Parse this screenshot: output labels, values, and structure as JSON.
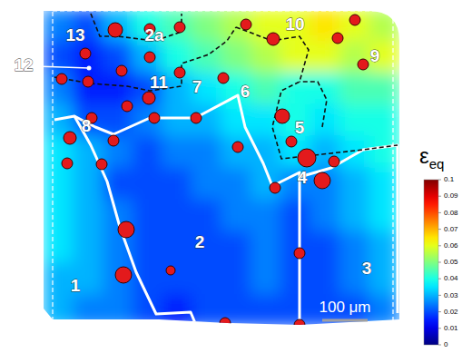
{
  "chart_data": {
    "type": "heatmap",
    "xlim": [
      0,
      784
    ],
    "ylim": [
      700,
      0
    ],
    "tick_labels": false,
    "cells": [
      [
        0.025,
        0.02,
        0.03,
        0.04,
        0.045,
        0.05,
        0.055,
        0.06,
        0.06,
        0.065,
        0.06,
        0.055
      ],
      [
        0.02,
        0.015,
        0.02,
        0.03,
        0.04,
        0.045,
        0.05,
        0.055,
        0.06,
        0.06,
        0.055,
        0.06
      ],
      [
        0.025,
        0.015,
        0.015,
        0.02,
        0.03,
        0.035,
        0.04,
        0.045,
        0.04,
        0.04,
        0.045,
        0.045
      ],
      [
        0.03,
        0.02,
        0.02,
        0.025,
        0.03,
        0.03,
        0.035,
        0.035,
        0.04,
        0.035,
        0.04,
        0.04
      ],
      [
        0.035,
        0.03,
        0.025,
        0.02,
        0.025,
        0.025,
        0.03,
        0.03,
        0.035,
        0.03,
        0.035,
        0.04
      ],
      [
        0.035,
        0.03,
        0.02,
        0.02,
        0.02,
        0.025,
        0.025,
        0.03,
        0.025,
        0.025,
        0.03,
        0.035
      ],
      [
        0.035,
        0.03,
        0.025,
        0.02,
        0.02,
        0.02,
        0.025,
        0.025,
        0.02,
        0.025,
        0.03,
        0.035
      ],
      [
        0.035,
        0.03,
        0.025,
        0.02,
        0.02,
        0.02,
        0.02,
        0.025,
        0.02,
        0.02,
        0.025,
        0.03
      ],
      [
        0.03,
        0.03,
        0.025,
        0.02,
        0.02,
        0.02,
        0.02,
        0.025,
        0.02,
        0.02,
        0.025,
        0.03
      ],
      [
        0.03,
        0.025,
        0.025,
        0.02,
        0.015,
        0.02,
        0.02,
        0.02,
        0.02,
        0.02,
        0.02,
        0.025
      ]
    ],
    "colorbar": {
      "label": "ε",
      "subscript": "eq",
      "range": [
        0,
        0.1
      ],
      "ticks": [
        0,
        0.01,
        0.02,
        0.03,
        0.04,
        0.05,
        0.06,
        0.07,
        0.08,
        0.09,
        0.1
      ]
    },
    "points": [
      {
        "x": 158,
        "y": 46,
        "size": 32
      },
      {
        "x": 234,
        "y": 44,
        "size": 24
      },
      {
        "x": 300,
        "y": 40,
        "size": 24
      },
      {
        "x": 446,
        "y": 34,
        "size": 24
      },
      {
        "x": 506,
        "y": 66,
        "size": 28
      },
      {
        "x": 648,
        "y": 64,
        "size": 24
      },
      {
        "x": 686,
        "y": 24,
        "size": 24
      },
      {
        "x": 704,
        "y": 122,
        "size": 24
      },
      {
        "x": 92,
        "y": 98,
        "size": 24
      },
      {
        "x": 40,
        "y": 154,
        "size": 24
      },
      {
        "x": 98,
        "y": 160,
        "size": 24
      },
      {
        "x": 172,
        "y": 136,
        "size": 24
      },
      {
        "x": 234,
        "y": 106,
        "size": 24
      },
      {
        "x": 300,
        "y": 140,
        "size": 24
      },
      {
        "x": 396,
        "y": 152,
        "size": 24
      },
      {
        "x": 232,
        "y": 196,
        "size": 28
      },
      {
        "x": 184,
        "y": 214,
        "size": 24
      },
      {
        "x": 106,
        "y": 240,
        "size": 24
      },
      {
        "x": 244,
        "y": 240,
        "size": 24
      },
      {
        "x": 336,
        "y": 240,
        "size": 24
      },
      {
        "x": 154,
        "y": 290,
        "size": 24
      },
      {
        "x": 58,
        "y": 284,
        "size": 28
      },
      {
        "x": 52,
        "y": 340,
        "size": 24
      },
      {
        "x": 128,
        "y": 342,
        "size": 24
      },
      {
        "x": 428,
        "y": 304,
        "size": 24
      },
      {
        "x": 526,
        "y": 236,
        "size": 32
      },
      {
        "x": 546,
        "y": 292,
        "size": 24
      },
      {
        "x": 580,
        "y": 328,
        "size": 40
      },
      {
        "x": 614,
        "y": 378,
        "size": 36
      },
      {
        "x": 640,
        "y": 336,
        "size": 24
      },
      {
        "x": 510,
        "y": 394,
        "size": 24
      },
      {
        "x": 182,
        "y": 486,
        "size": 36
      },
      {
        "x": 280,
        "y": 576,
        "size": 20
      },
      {
        "x": 176,
        "y": 586,
        "size": 36
      },
      {
        "x": 564,
        "y": 538,
        "size": 24
      },
      {
        "x": 400,
        "y": 692,
        "size": 24
      },
      {
        "x": 564,
        "y": 696,
        "size": 24
      }
    ],
    "color": "#e31a1c",
    "annotations": [
      {
        "text": "13",
        "x": 70,
        "y": 60
      },
      {
        "text": "2a",
        "x": 244,
        "y": 60
      },
      {
        "text": "10",
        "x": 554,
        "y": 36
      },
      {
        "text": "9",
        "x": 730,
        "y": 106
      },
      {
        "text": "12",
        "x": -44,
        "y": 126,
        "target": [
          100,
          130
        ]
      },
      {
        "text": "11",
        "x": 254,
        "y": 164
      },
      {
        "text": "7",
        "x": 338,
        "y": 174
      },
      {
        "text": "6",
        "x": 444,
        "y": 184
      },
      {
        "text": "8",
        "x": 94,
        "y": 260
      },
      {
        "text": "5",
        "x": 564,
        "y": 264
      },
      {
        "text": "4",
        "x": 570,
        "y": 374
      },
      {
        "text": "2",
        "x": 344,
        "y": 516
      },
      {
        "text": "3",
        "x": 712,
        "y": 574
      },
      {
        "text": "1",
        "x": 70,
        "y": 612
      }
    ],
    "scale_bar": {
      "label": "100 μm",
      "length": 100
    }
  }
}
